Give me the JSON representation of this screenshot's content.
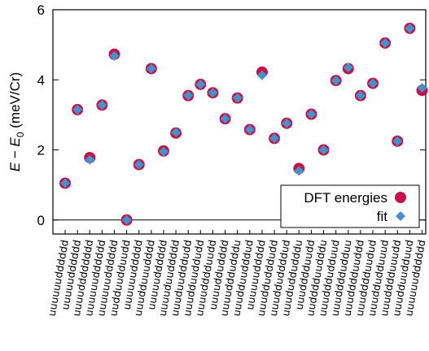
{
  "chart_data": {
    "type": "scatter",
    "ylabel_parts": {
      "e": "E",
      "minus": " − ",
      "e0": "E",
      "sub": "0",
      "unit": " (meV/Cr)"
    },
    "ylim": [
      -0.4,
      6
    ],
    "yticks": [
      0,
      2,
      4,
      6
    ],
    "ytick_labels": [
      "0",
      "2",
      "4",
      "6"
    ],
    "hline": 0,
    "grid": false,
    "legend_placement": "bottom-right",
    "colors": {
      "dft": "#c0144a",
      "fit": "#4a90c8"
    },
    "categories": [
      "uuuuuudddddd",
      "uuuuudddddd",
      "uuuudddddddd",
      "uuuuuudddddd",
      "uuuuuudddddd",
      "uudduudduudd",
      "uuuuuuddddd",
      "uuudduuudddd",
      "uuuuudddddd",
      "uuuuduuddddd",
      "uuuduudddudd",
      "uuudduuddudd",
      "uuuudddduudd",
      "uuuuddudddd",
      "uuuudddudddu",
      "uuudduudddud",
      "uuuuuuddddd",
      "uuuddudddudd",
      "uuudduddddud",
      "uuududdudddu",
      "uuudddduudd",
      "uudddduudddu",
      "uuudddudduud",
      "uuuddddudduu",
      "uuudddduuddd",
      "uuudddduudud",
      "uuuddudduuud",
      "uuudddduuudd",
      "uuudduudduud",
      "uuuuuudddddd"
    ],
    "series": [
      {
        "name": "DFT energies",
        "marker": "circle",
        "values": [
          1.05,
          3.15,
          1.78,
          3.28,
          4.73,
          0.0,
          1.58,
          4.32,
          1.97,
          2.48,
          3.55,
          3.87,
          3.63,
          2.89,
          3.48,
          2.58,
          4.22,
          2.33,
          2.76,
          1.47,
          3.02,
          2.0,
          3.98,
          4.32,
          3.55,
          3.9,
          5.05,
          2.25,
          5.47,
          3.7
        ]
      },
      {
        "name": "fit",
        "marker": "diamond",
        "values": [
          1.05,
          3.15,
          1.72,
          3.28,
          4.68,
          0.0,
          1.58,
          4.32,
          1.95,
          2.5,
          3.55,
          3.87,
          3.63,
          2.89,
          3.48,
          2.58,
          4.13,
          2.33,
          2.76,
          1.4,
          3.02,
          2.0,
          3.98,
          4.35,
          3.55,
          3.9,
          5.05,
          2.25,
          5.47,
          3.77
        ]
      }
    ]
  }
}
